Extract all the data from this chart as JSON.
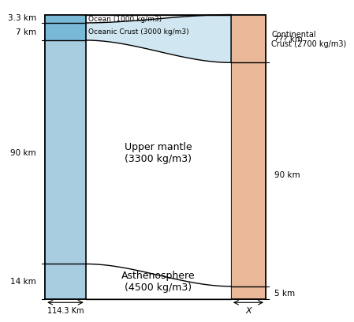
{
  "ocean_color": "#7ab8d8",
  "continental_color": "#e8b898",
  "background_color": "#f5f5f5",
  "white": "#ffffff",
  "ocean_label": "Ocean (1000 kg/m3)",
  "oceanic_crust_label": "Oceanic Crust (3000 kg/m3)",
  "upper_mantle_label": "Upper mantle\n(3300 kg/m3)",
  "asthenosphere_label": "Asthenosphere\n(4500 kg/m3)",
  "continental_label": "Continental\nCrust (2700 kg/m3)",
  "bottom_label_left": "114.3 Km",
  "bottom_label_right": "X",
  "left_tick_labels": [
    "3.3 km",
    "7 km",
    "90 km",
    "14 km"
  ],
  "right_tick_labels": [
    "??? km",
    "90 km",
    "5 km"
  ],
  "ocean_thick": 3.3,
  "oceanic_crust_thick": 7.0,
  "upper_mantle_thick": 90.0,
  "asthenosphere_thick": 14.0,
  "cont_crust_thick": 19.3,
  "cont_mantle_thick": 90.0,
  "cont_astheno_thick": 5.0,
  "total_depth": 114.3,
  "fig_width": 6.35,
  "fig_height": 4.28
}
